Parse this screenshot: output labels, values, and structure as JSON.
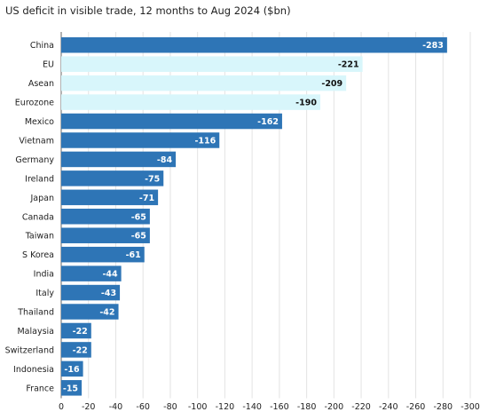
{
  "title": "US deficit in visible trade, 12 months to Aug 2024 ($bn)",
  "colors": {
    "dark_bar": "#2e75b6",
    "light_bar": "#d8f6fb",
    "dark_label": "#ffffff",
    "light_label": "#111111"
  },
  "chart_data": {
    "type": "bar",
    "orientation": "horizontal",
    "title": "US deficit in visible trade, 12 months to Aug 2024 ($bn)",
    "xlabel": "",
    "ylabel": "",
    "categories": [
      "China",
      "EU",
      "Asean",
      "Eurozone",
      "Mexico",
      "Vietnam",
      "Germany",
      "Ireland",
      "Japan",
      "Canada",
      "Taiwan",
      "S Korea",
      "India",
      "Italy",
      "Thailand",
      "Malaysia",
      "Switzerland",
      "Indonesia",
      "France"
    ],
    "values": [
      -283,
      -221,
      -209,
      -190,
      -162,
      -116,
      -84,
      -75,
      -71,
      -65,
      -65,
      -61,
      -44,
      -43,
      -42,
      -22,
      -22,
      -16,
      -15
    ],
    "highlight": [
      false,
      true,
      true,
      true,
      false,
      false,
      false,
      false,
      false,
      false,
      false,
      false,
      false,
      false,
      false,
      false,
      false,
      false,
      false
    ],
    "xlim": [
      0,
      -300
    ],
    "xticks": [
      0,
      -20,
      -40,
      -60,
      -80,
      -100,
      -120,
      -140,
      -160,
      -180,
      -200,
      -220,
      -240,
      -260,
      -280,
      -300
    ],
    "grid": true,
    "legend": "none"
  }
}
